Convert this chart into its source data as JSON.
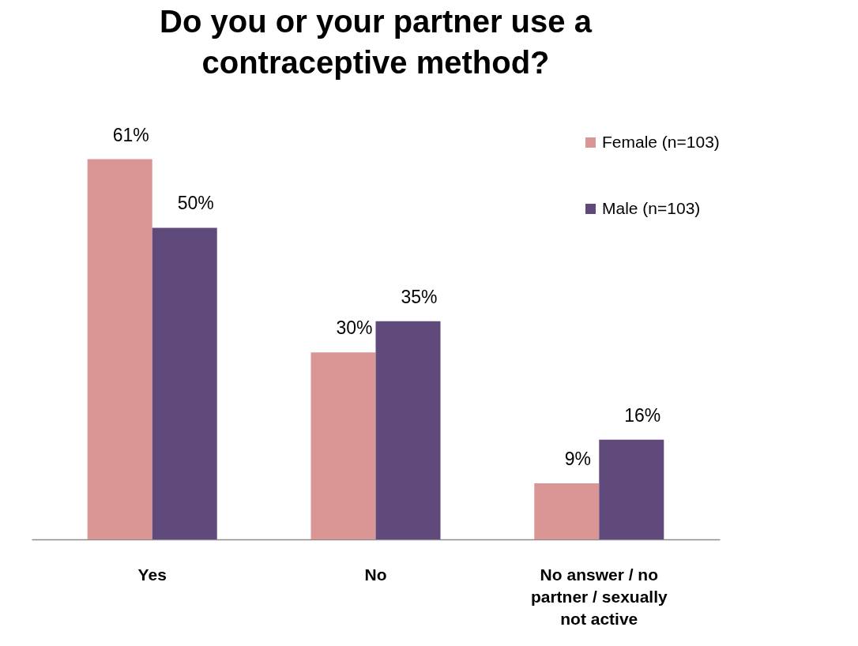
{
  "chart_data": {
    "type": "bar",
    "title": "Do you or your partner use a contraceptive method?",
    "categories": [
      "Yes",
      "No",
      "No answer / no partner / sexually not active"
    ],
    "series": [
      {
        "name": "Female (n=103)",
        "color": "#d99694",
        "values": [
          61,
          30,
          9
        ],
        "value_labels": [
          "61%",
          "30%",
          "9%"
        ]
      },
      {
        "name": "Male (n=103)",
        "color": "#604a7b",
        "values": [
          50,
          35,
          16
        ],
        "value_labels": [
          "50%",
          "35%",
          "16%"
        ]
      }
    ],
    "legend": "top right"
  }
}
